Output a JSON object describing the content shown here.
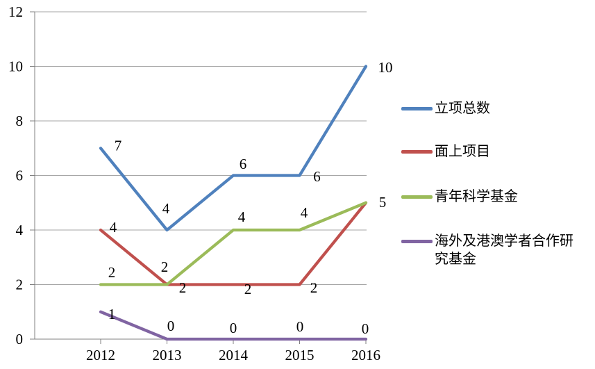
{
  "chart_data": {
    "type": "line",
    "title": "",
    "x": [
      "2012",
      "2013",
      "2014",
      "2015",
      "2016"
    ],
    "series": [
      {
        "name": "立项总数",
        "color": "#4F81BD",
        "values": [
          7,
          4,
          6,
          6,
          10
        ],
        "point_labels": [
          "7",
          "4",
          "6",
          "6",
          "10"
        ]
      },
      {
        "name": "面上项目",
        "color": "#C0504D",
        "values": [
          4,
          2,
          2,
          2,
          5
        ],
        "point_labels": [
          "4",
          "2",
          "2",
          "2",
          "5"
        ]
      },
      {
        "name": "青年科学基金",
        "color": "#9BBB59",
        "values": [
          2,
          2,
          4,
          4,
          5
        ],
        "point_labels": [
          "2",
          "2",
          "4",
          "4",
          null
        ]
      },
      {
        "name": "海外及港澳学者合作研究基金",
        "color": "#8064A2",
        "values": [
          1,
          0,
          0,
          0,
          0
        ],
        "point_labels": [
          "1",
          "0",
          "0",
          "0",
          "0"
        ]
      }
    ],
    "y_axis": {
      "min": 0,
      "max": 12,
      "step": 2,
      "tick_labels": [
        "0",
        "2",
        "4",
        "6",
        "8",
        "10",
        "12"
      ]
    },
    "grid": true,
    "legend_position": "right",
    "colors": {
      "gridline": "#A6A6A6",
      "axis": "#808080",
      "text": "#000000",
      "background": "#FFFFFF"
    }
  }
}
